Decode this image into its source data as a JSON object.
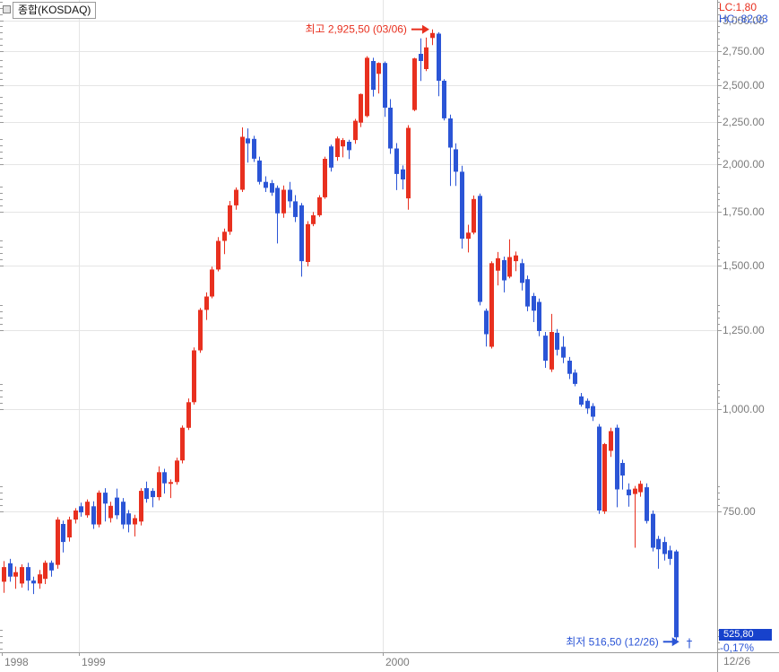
{
  "window": {
    "legend_label": "종합(KOSDAQ)"
  },
  "header": {
    "lc": "LC:1,80",
    "hc": "HC:-82,03"
  },
  "price_box": {
    "value": "525,80",
    "change": "-0,17%"
  },
  "colors": {
    "up": "#e8301f",
    "down": "#2b55d6",
    "grid": "#e5e5e5",
    "axis": "#9a9a9a",
    "tick_text": "#7b7b7b",
    "price_box_bg": "#1742cc",
    "high_annotation": "#e8301f",
    "low_annotation": "#2b55d6"
  },
  "chart_data": {
    "type": "candlestick",
    "title": "종합(KOSDAQ)",
    "timeframe": "weekly",
    "legend": "single series, Korean convention: red = up, blue = down",
    "y_axis": {
      "scale": "log",
      "top_price": 3178,
      "bottom_price": 504,
      "major_ticks": [
        {
          "price": 3000,
          "label": "3,000.00"
        },
        {
          "price": 2750,
          "label": "2,750.00"
        },
        {
          "price": 2500,
          "label": "2,500.00"
        },
        {
          "price": 2250,
          "label": "2,250.00"
        },
        {
          "price": 2000,
          "label": "2,000.00"
        },
        {
          "price": 1750,
          "label": "1,750.00"
        },
        {
          "price": 1500,
          "label": "1,500.00"
        },
        {
          "price": 1250,
          "label": "1,250.00"
        },
        {
          "price": 1000,
          "label": "1,000.00"
        },
        {
          "price": 750,
          "label": "750.00"
        }
      ],
      "virtual_minor_base": 500
    },
    "x_axis": {
      "year_labels": [
        {
          "label": "1998",
          "index": -0.3,
          "line": false
        },
        {
          "label": "1999",
          "index": 12.66,
          "line": true
        },
        {
          "label": "2000",
          "index": 63.72,
          "line": true
        }
      ],
      "end_label": "12/26"
    },
    "annotations": {
      "high": {
        "label": "최고 2,925,50 (03/06)",
        "index": 72,
        "price": 2925.5
      },
      "low": {
        "label": "최저 516,50 (12/26)",
        "index": 114,
        "price": 516.5,
        "marker": "†"
      }
    },
    "candles": [
      [
        615,
        652,
        596,
        641
      ],
      [
        648,
        656,
        615,
        624
      ],
      [
        624,
        642,
        603,
        632
      ],
      [
        612,
        646,
        605,
        641
      ],
      [
        641,
        649,
        600,
        617
      ],
      [
        617,
        624,
        594,
        612
      ],
      [
        612,
        636,
        603,
        628
      ],
      [
        620,
        653,
        611,
        649
      ],
      [
        649,
        653,
        624,
        635
      ],
      [
        645,
        738,
        638,
        733
      ],
      [
        724,
        731,
        668,
        688
      ],
      [
        697,
        739,
        689,
        733
      ],
      [
        733,
        757,
        725,
        752
      ],
      [
        761,
        769,
        739,
        748
      ],
      [
        742,
        776,
        737,
        771
      ],
      [
        761,
        772,
        714,
        723
      ],
      [
        723,
        796,
        717,
        791
      ],
      [
        791,
        801,
        729,
        767
      ],
      [
        736,
        771,
        727,
        762
      ],
      [
        780,
        800,
        734,
        742
      ],
      [
        771,
        779,
        714,
        723
      ],
      [
        746,
        753,
        707,
        723
      ],
      [
        723,
        743,
        699,
        736
      ],
      [
        729,
        801,
        721,
        795
      ],
      [
        801,
        816,
        769,
        777
      ],
      [
        795,
        801,
        759,
        781
      ],
      [
        781,
        852,
        774,
        838
      ],
      [
        838,
        846,
        789,
        812
      ],
      [
        812,
        821,
        779,
        815
      ],
      [
        815,
        873,
        809,
        866
      ],
      [
        866,
        956,
        859,
        950
      ],
      [
        950,
        1032,
        944,
        1021
      ],
      [
        1021,
        1192,
        1014,
        1182
      ],
      [
        1182,
        1332,
        1174,
        1325
      ],
      [
        1325,
        1392,
        1288,
        1376
      ],
      [
        1376,
        1497,
        1369,
        1485
      ],
      [
        1485,
        1627,
        1477,
        1610
      ],
      [
        1610,
        1667,
        1551,
        1652
      ],
      [
        1652,
        1802,
        1638,
        1780
      ],
      [
        1780,
        1872,
        1758,
        1860
      ],
      [
        1860,
        2218,
        1848,
        2160
      ],
      [
        2150,
        2212,
        2008,
        2120
      ],
      [
        2147,
        2166,
        2012,
        2030
      ],
      [
        2020,
        2042,
        1888,
        1902
      ],
      [
        1902,
        1932,
        1848,
        1870
      ],
      [
        1895,
        1912,
        1828,
        1845
      ],
      [
        1870,
        1882,
        1598,
        1740
      ],
      [
        1740,
        1882,
        1718,
        1860
      ],
      [
        1860,
        1902,
        1768,
        1800
      ],
      [
        1800,
        1832,
        1698,
        1722
      ],
      [
        1780,
        1792,
        1455,
        1520
      ],
      [
        1517,
        1702,
        1498,
        1688
      ],
      [
        1688,
        1747,
        1678,
        1731
      ],
      [
        1731,
        1832,
        1723,
        1821
      ],
      [
        1821,
        2042,
        1813,
        2030
      ],
      [
        2102,
        2112,
        1958,
        1980
      ],
      [
        2040,
        2162,
        2018,
        2150
      ],
      [
        2102,
        2152,
        2038,
        2140
      ],
      [
        2130,
        2142,
        2028,
        2080
      ],
      [
        2140,
        2272,
        2118,
        2260
      ],
      [
        2248,
        2440,
        2220,
        2437
      ],
      [
        2290,
        2712,
        2282,
        2700
      ],
      [
        2675,
        2700,
        2420,
        2466
      ],
      [
        2580,
        2665,
        2440,
        2660
      ],
      [
        2660,
        2672,
        2285,
        2345
      ],
      [
        2345,
        2402,
        2058,
        2090
      ],
      [
        2090,
        2122,
        1858,
        1945
      ],
      [
        1970,
        1992,
        1862,
        1915
      ],
      [
        1815,
        2232,
        1758,
        2215
      ],
      [
        2330,
        2700,
        2322,
        2695
      ],
      [
        2730,
        2852,
        2528,
        2675
      ],
      [
        2615,
        2858,
        2600,
        2780
      ],
      [
        2855,
        2925.5,
        2798,
        2895
      ],
      [
        2890,
        2902,
        2422,
        2530
      ],
      [
        2530,
        2542,
        2262,
        2275
      ],
      [
        2275,
        2300,
        1880,
        2095
      ],
      [
        2085,
        2120,
        1880,
        1957
      ],
      [
        1957,
        1990,
        1575,
        1620
      ],
      [
        1620,
        1685,
        1558,
        1648
      ],
      [
        1648,
        1830,
        1640,
        1812
      ],
      [
        1828,
        1840,
        1342,
        1355
      ],
      [
        1322,
        1330,
        1195,
        1237
      ],
      [
        1194,
        1520,
        1188,
        1512
      ],
      [
        1480,
        1560,
        1420,
        1533
      ],
      [
        1525,
        1540,
        1392,
        1440
      ],
      [
        1455,
        1617,
        1448,
        1538
      ],
      [
        1520,
        1562,
        1478,
        1545
      ],
      [
        1512,
        1530,
        1400,
        1430
      ],
      [
        1445,
        1460,
        1320,
        1338
      ],
      [
        1378,
        1390,
        1280,
        1322
      ],
      [
        1355,
        1368,
        1230,
        1248
      ],
      [
        1232,
        1245,
        1125,
        1148
      ],
      [
        1120,
        1310,
        1112,
        1245
      ],
      [
        1242,
        1255,
        1165,
        1184
      ],
      [
        1194,
        1230,
        1140,
        1158
      ],
      [
        1148,
        1160,
        1090,
        1106
      ],
      [
        1110,
        1120,
        1068,
        1075
      ],
      [
        1038,
        1048,
        1008,
        1014
      ],
      [
        1025,
        1032,
        988,
        1003
      ],
      [
        1010,
        1018,
        968,
        980
      ],
      [
        953,
        960,
        745,
        752
      ],
      [
        750,
        910,
        745,
        907
      ],
      [
        890,
        950,
        875,
        941
      ],
      [
        950,
        958,
        759,
        798
      ],
      [
        860,
        868,
        798,
        830
      ],
      [
        798,
        812,
        760,
        785
      ],
      [
        788,
        806,
        677,
        800
      ],
      [
        792,
        818,
        782,
        811
      ],
      [
        803,
        812,
        725,
        730
      ],
      [
        745,
        752,
        670,
        677
      ],
      [
        694,
        700,
        638,
        674
      ],
      [
        688,
        698,
        653,
        665
      ],
      [
        672,
        681,
        645,
        656
      ],
      [
        670,
        673,
        516.5,
        525.8
      ]
    ]
  }
}
